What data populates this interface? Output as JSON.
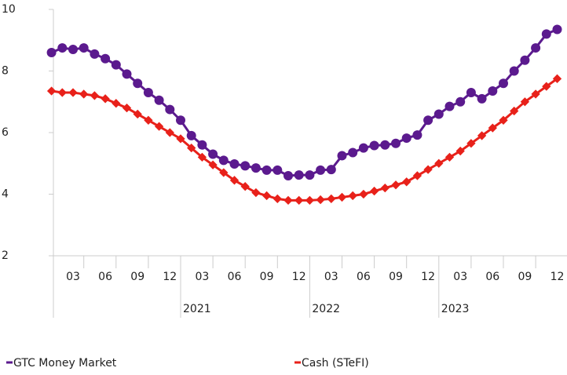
{
  "chart_data": {
    "type": "line",
    "categories": [
      null,
      null,
      "03",
      null,
      null,
      "06",
      null,
      null,
      "09",
      null,
      null,
      "12",
      null,
      null,
      "03",
      null,
      null,
      "06",
      null,
      null,
      "09",
      null,
      null,
      "12",
      null,
      null,
      "03",
      null,
      null,
      "06",
      null,
      null,
      "09",
      null,
      null,
      "12",
      null,
      null,
      "03",
      null,
      null,
      "06",
      null,
      null,
      "09",
      null,
      null,
      "12"
    ],
    "year_groups": [
      null,
      "2021",
      "2022",
      "2023"
    ],
    "ylim": [
      2,
      10
    ],
    "yticks": [
      2,
      4,
      6,
      8,
      10
    ],
    "series": [
      {
        "name": "GTC Money Market",
        "color": "#5b1a8e",
        "values": [
          8.6,
          8.75,
          8.7,
          8.75,
          8.55,
          8.4,
          8.2,
          7.9,
          7.6,
          7.3,
          7.05,
          6.75,
          6.4,
          5.9,
          5.6,
          5.3,
          5.1,
          4.98,
          4.92,
          4.85,
          4.78,
          4.78,
          4.6,
          4.62,
          4.62,
          4.78,
          4.8,
          5.25,
          5.35,
          5.5,
          5.58,
          5.6,
          5.65,
          5.82,
          5.92,
          6.4,
          6.6,
          6.85,
          7.0,
          7.3,
          7.1,
          7.35,
          7.6,
          8.0,
          8.35,
          8.75,
          9.2,
          9.35
        ]
      },
      {
        "name": "Cash (STeFI)",
        "color": "#e8211a",
        "values": [
          7.35,
          7.3,
          7.3,
          7.25,
          7.2,
          7.1,
          6.95,
          6.8,
          6.6,
          6.4,
          6.2,
          6.0,
          5.8,
          5.5,
          5.2,
          4.95,
          4.7,
          4.45,
          4.25,
          4.05,
          3.95,
          3.85,
          3.8,
          3.8,
          3.8,
          3.82,
          3.85,
          3.9,
          3.95,
          4.0,
          4.1,
          4.2,
          4.3,
          4.4,
          4.6,
          4.8,
          5.0,
          5.2,
          5.4,
          5.65,
          5.9,
          6.15,
          6.4,
          6.7,
          7.0,
          7.25,
          7.5,
          7.75
        ]
      }
    ]
  }
}
